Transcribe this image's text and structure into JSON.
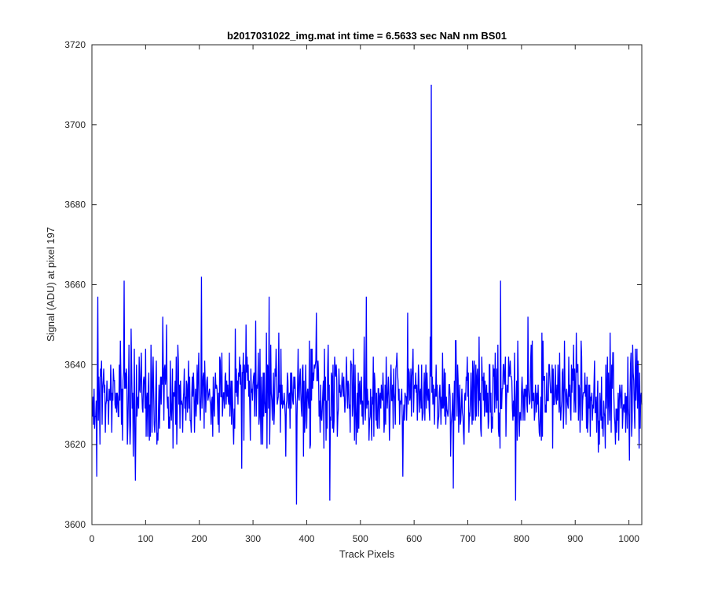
{
  "chart_data": {
    "type": "line",
    "title": "b2017031022_img.mat int time = 6.5633 sec  NaN nm BS01",
    "xlabel": "Track Pixels",
    "ylabel": "Signal (ADU) at pixel 197",
    "xlim": [
      0,
      1024
    ],
    "ylim": [
      3600,
      3720
    ],
    "xticks": [
      0,
      100,
      200,
      300,
      400,
      500,
      600,
      700,
      800,
      900,
      1000
    ],
    "yticks": [
      3600,
      3620,
      3640,
      3660,
      3680,
      3700,
      3720
    ],
    "grid": false,
    "legend": "none",
    "line_color": "#0000ff",
    "series": [
      {
        "n_points": 1024,
        "baseline": 3632,
        "noise_sd": 6.5,
        "seed": 20170310,
        "spikes": [
          {
            "x": 8,
            "y": 3612
          },
          {
            "x": 10,
            "y": 3657
          },
          {
            "x": 59,
            "y": 3661
          },
          {
            "x": 80,
            "y": 3611
          },
          {
            "x": 203,
            "y": 3662
          },
          {
            "x": 329,
            "y": 3657
          },
          {
            "x": 380,
            "y": 3605
          },
          {
            "x": 442,
            "y": 3606
          },
          {
            "x": 510,
            "y": 3657
          },
          {
            "x": 578,
            "y": 3612
          },
          {
            "x": 631,
            "y": 3710
          },
          {
            "x": 672,
            "y": 3609
          },
          {
            "x": 760,
            "y": 3661
          },
          {
            "x": 788,
            "y": 3606
          }
        ]
      }
    ]
  }
}
